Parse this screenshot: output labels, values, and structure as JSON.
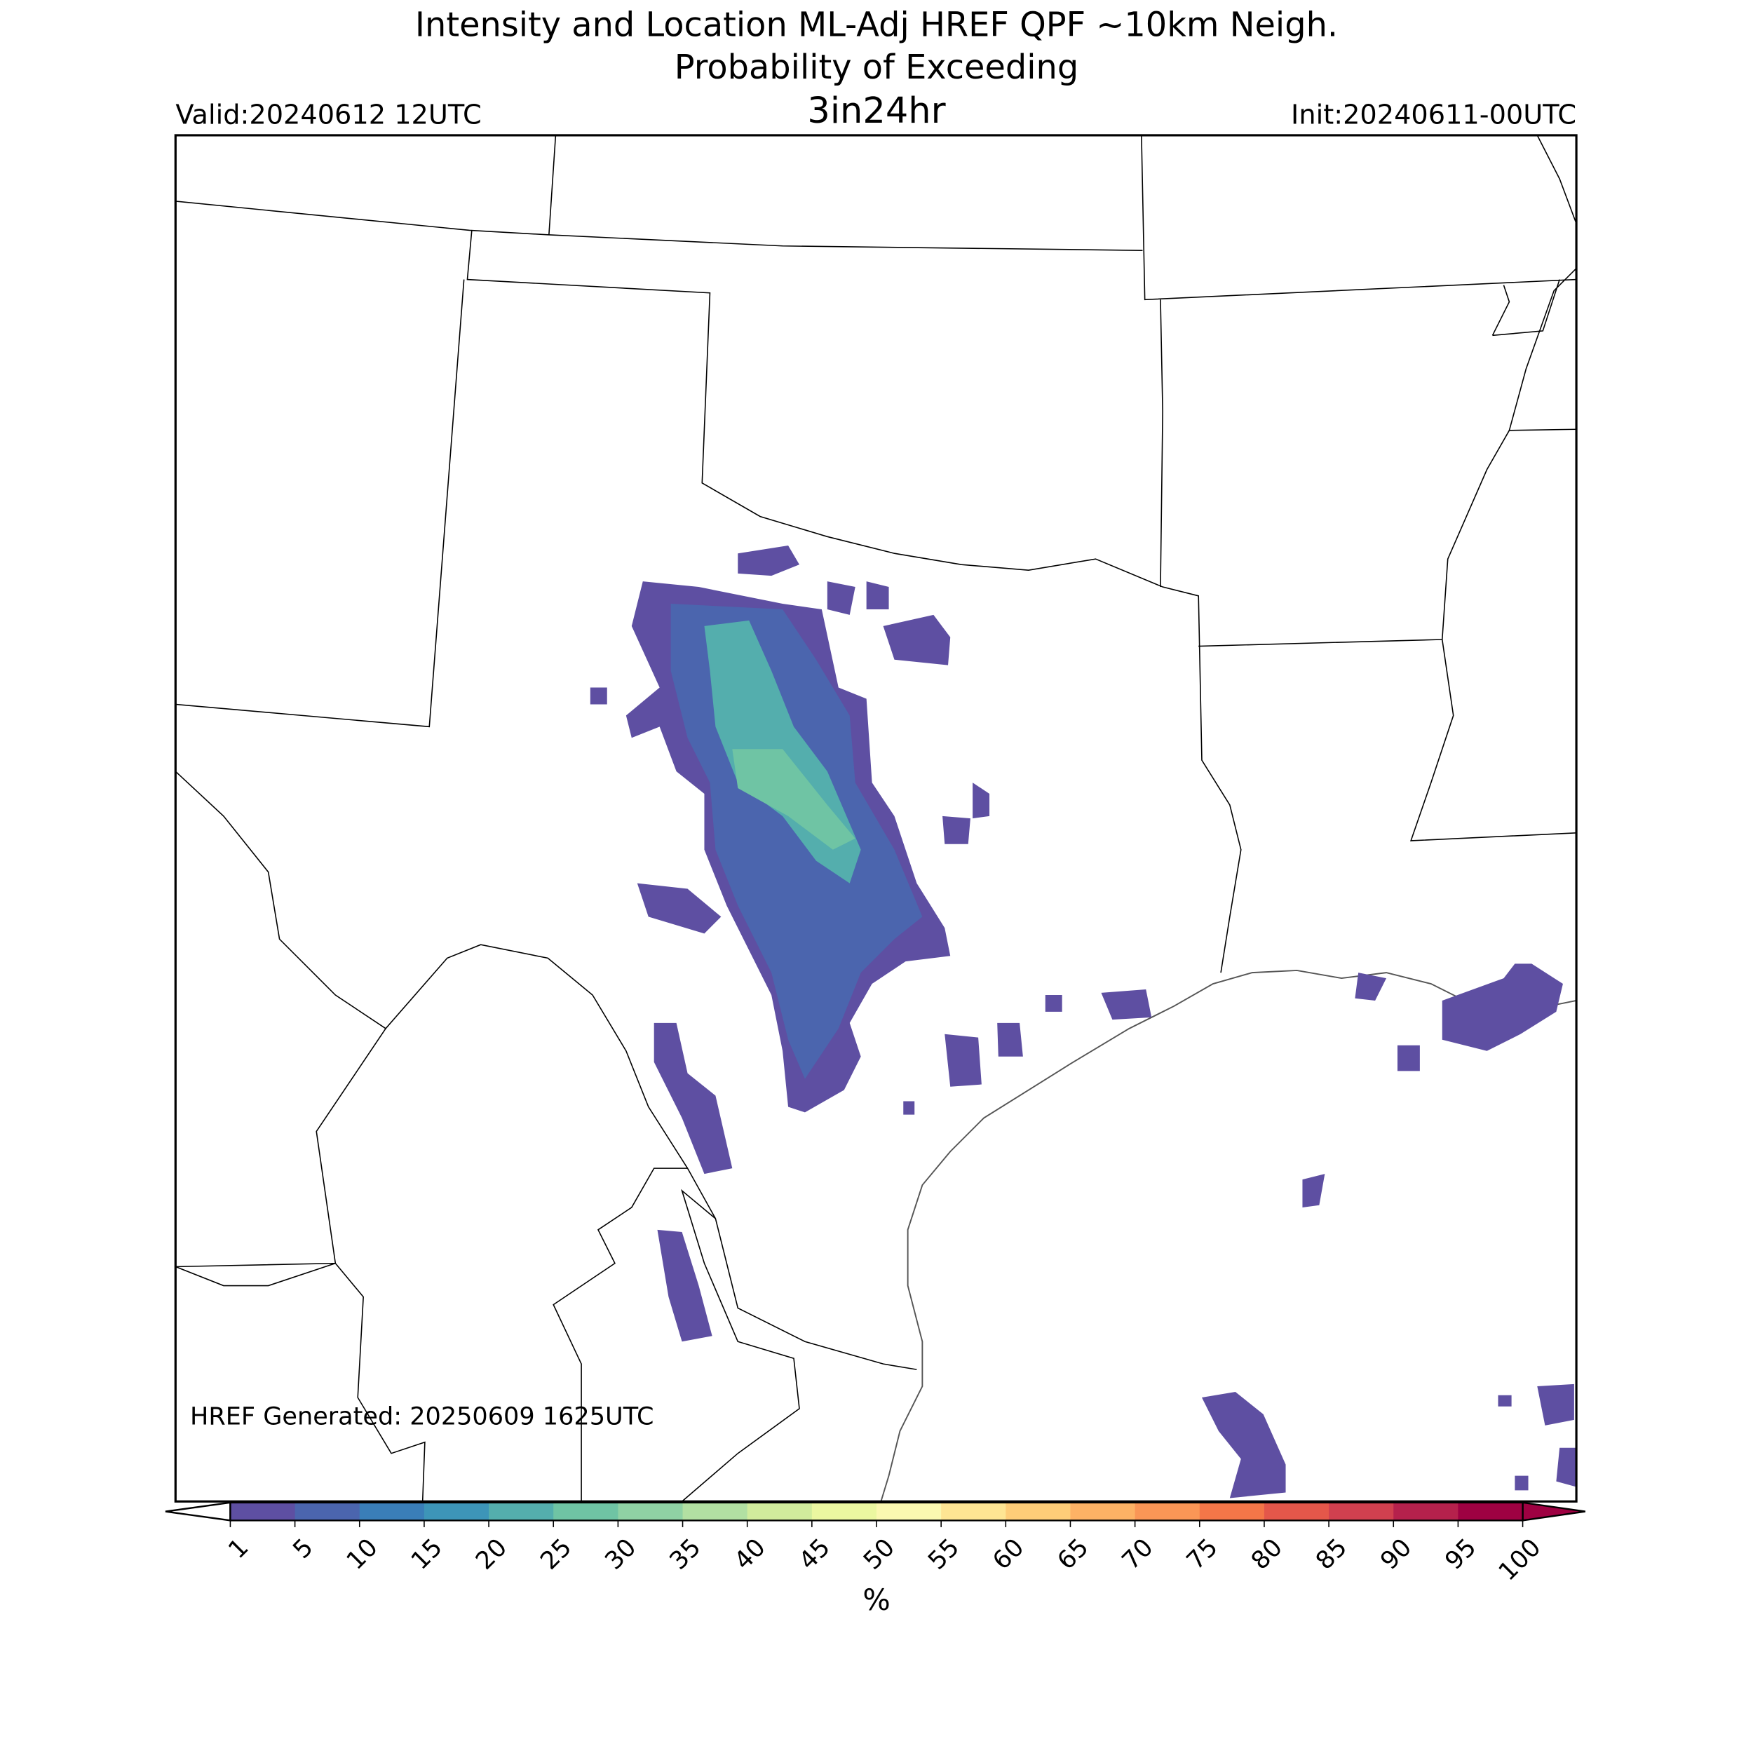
{
  "title": {
    "line1": "Intensity and Location ML-Adj HREF QPF ~10km Neigh.",
    "line2": "Probability of Exceeding",
    "threshold": "3in24hr"
  },
  "valid": "Valid:20240612 12UTC",
  "init": "Init:20240611-00UTC",
  "generated": "HREF Generated: 20250609 1625UTC",
  "colorbar": {
    "label": "%",
    "ticks": [
      1,
      5,
      10,
      15,
      20,
      25,
      30,
      35,
      40,
      45,
      50,
      55,
      60,
      65,
      70,
      75,
      80,
      85,
      90,
      95,
      100
    ],
    "colors": [
      "#5e4fa2",
      "#4b65ae",
      "#3a7eb8",
      "#3d95b8",
      "#54aead",
      "#6fc4a4",
      "#8fd2a4",
      "#b2e0a2",
      "#d1ec9c",
      "#ebf7a0",
      "#fbf8b0",
      "#fee593",
      "#fecd78",
      "#fdb265",
      "#fa9656",
      "#f47648",
      "#e4574a",
      "#d0404f",
      "#b5214c",
      "#9e0142"
    ]
  }
}
